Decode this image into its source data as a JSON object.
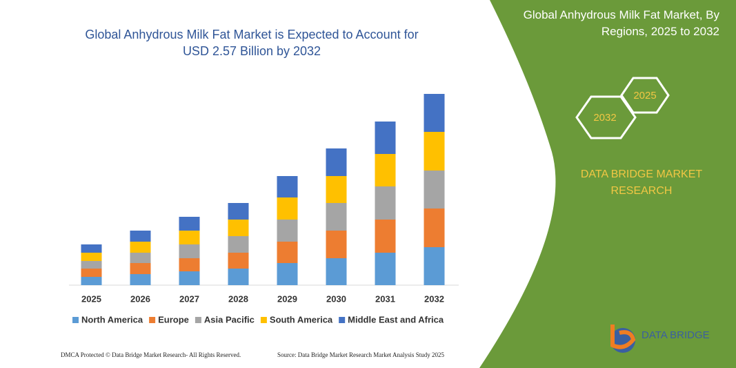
{
  "chart_data": {
    "type": "stacked-bar",
    "title": "Global Anhydrous Milk Fat Market is Expected to Account for USD 2.57 Billion by 2032",
    "categories": [
      "2025",
      "2026",
      "2027",
      "2028",
      "2029",
      "2030",
      "2031",
      "2032"
    ],
    "series": [
      {
        "name": "North America",
        "color": "#5b9bd5",
        "values": [
          12,
          16,
          20,
          24,
          32,
          39,
          47,
          55
        ]
      },
      {
        "name": "Europe",
        "color": "#ed7d31",
        "values": [
          12,
          16,
          19,
          23,
          31,
          40,
          48,
          56
        ]
      },
      {
        "name": "Asia Pacific",
        "color": "#a5a5a5",
        "values": [
          11,
          15,
          20,
          24,
          32,
          40,
          48,
          55
        ]
      },
      {
        "name": "South America",
        "color": "#ffc000",
        "values": [
          12,
          16,
          20,
          24,
          32,
          39,
          47,
          56
        ]
      },
      {
        "name": "Middle East and Africa",
        "color": "#4472c4",
        "values": [
          12,
          16,
          20,
          24,
          31,
          40,
          47,
          55
        ]
      }
    ]
  },
  "panel": {
    "title": "Global Anhydrous Milk Fat Market, By Regions, 2025 to 2032",
    "hex_start": "2025",
    "hex_end": "2032",
    "brand": "DATA BRIDGE MARKET RESEARCH",
    "logo": "DATA BRIDGE"
  },
  "footer": {
    "left": "DMCA Protected © Data Bridge Market Research- All Rights Reserved.",
    "right": "Source: Data Bridge Market Research Market Analysis Study 2025"
  }
}
